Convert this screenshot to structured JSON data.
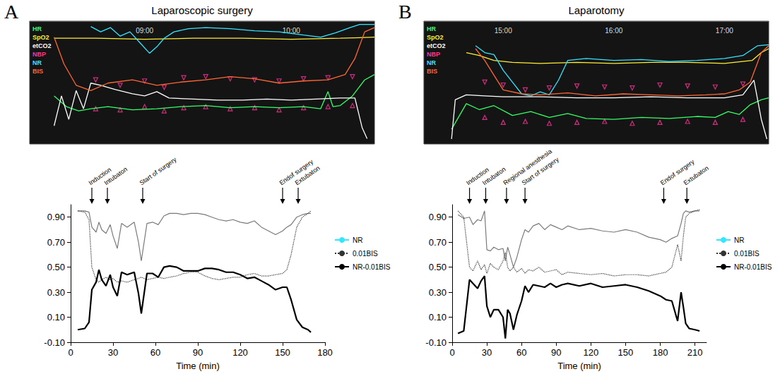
{
  "chart_data": [
    {
      "type": "line",
      "panel": "A",
      "title": "Laparoscopic surgery",
      "xlim": [
        493,
        634
      ],
      "xticks": [
        {
          "value": 540,
          "label": "09:00"
        },
        {
          "value": 600,
          "label": "10:00"
        }
      ],
      "ylim": [
        -5,
        110
      ],
      "tick_labels": "x",
      "grid": false,
      "series": [
        {
          "name": "HR",
          "color": "#33ff66",
          "line_style": "solid",
          "x": [
            503,
            508,
            513,
            518,
            525,
            535,
            545,
            555,
            565,
            575,
            585,
            595,
            605,
            612,
            615,
            617,
            620,
            625,
            630,
            634
          ],
          "values": [
            40,
            30,
            26,
            28,
            30,
            27,
            28,
            30,
            31,
            29,
            30,
            29,
            30,
            28,
            44,
            30,
            31,
            40,
            55,
            60
          ]
        },
        {
          "name": "SpO2",
          "color": "#ffee33",
          "line_style": "solid",
          "x": [
            503,
            520,
            540,
            560,
            580,
            600,
            620,
            634
          ],
          "values": [
            94,
            94,
            93,
            94,
            94,
            93,
            94,
            95
          ]
        },
        {
          "name": "etCO2",
          "color": "#ffffff",
          "line_style": "solid",
          "x": [
            503,
            506,
            509,
            512,
            515,
            518,
            522,
            528,
            535,
            540,
            545,
            550,
            560,
            570,
            580,
            590,
            600,
            610,
            620,
            626,
            629,
            631
          ],
          "values": [
            12,
            40,
            18,
            45,
            28,
            52,
            50,
            46,
            42,
            40,
            44,
            38,
            37,
            36,
            36,
            37,
            36,
            37,
            38,
            38,
            10,
            0
          ]
        },
        {
          "name": "NBP",
          "color": "#ff3399",
          "type": "scatter",
          "marker": "triangle",
          "x": [
            520,
            530,
            540,
            548,
            556,
            565,
            575,
            585,
            595,
            605,
            615,
            625
          ],
          "high": [
            55,
            50,
            54,
            48,
            57,
            58,
            56,
            55,
            54,
            56,
            57,
            58
          ],
          "low": [
            28,
            27,
            30,
            26,
            29,
            30,
            28,
            29,
            27,
            29,
            30,
            31
          ]
        },
        {
          "name": "NR",
          "color": "#33e6ff",
          "line_style": "solid",
          "x": [
            518,
            522,
            526,
            530,
            534,
            538,
            542,
            545,
            548,
            552,
            558,
            565,
            575,
            585,
            595,
            605,
            612,
            618,
            624,
            628,
            634
          ],
          "values": [
            105,
            100,
            104,
            96,
            100,
            90,
            80,
            86,
            94,
            100,
            103,
            104,
            103,
            101,
            100,
            97,
            95,
            99,
            104,
            107,
            107
          ]
        },
        {
          "name": "BIS",
          "color": "#ff6633",
          "line_style": "solid",
          "x": [
            503,
            507,
            512,
            518,
            525,
            535,
            545,
            555,
            565,
            575,
            585,
            595,
            605,
            615,
            622,
            626,
            630,
            634
          ],
          "values": [
            95,
            70,
            50,
            45,
            52,
            55,
            50,
            53,
            55,
            58,
            56,
            52,
            54,
            55,
            60,
            75,
            100,
            104
          ]
        }
      ]
    },
    {
      "type": "line",
      "x_label": "Time (min)",
      "legend": "right",
      "grid": false,
      "xlim": [
        0,
        180
      ],
      "xticks": [
        0,
        30,
        60,
        90,
        120,
        150,
        180
      ],
      "ylim": [
        -0.1,
        1.0
      ],
      "yticks": [
        {
          "value": -0.1,
          "label": "-0.10"
        },
        {
          "value": 0.1,
          "label": "0.10"
        },
        {
          "value": 0.3,
          "label": "0.30"
        },
        {
          "value": 0.5,
          "label": "0.50"
        },
        {
          "value": 0.7,
          "label": "0.70"
        },
        {
          "value": 0.9,
          "label": "0.90"
        }
      ],
      "annotations": [
        {
          "text": "Induction",
          "x": 15
        },
        {
          "text": "Intubaton",
          "x": 26
        },
        {
          "text": "Start of surgery",
          "x": 51
        },
        {
          "text": "Endof surgery",
          "x": 150
        },
        {
          "text": "Extubaton",
          "x": 161
        }
      ],
      "x": [
        5,
        10,
        13,
        15,
        18,
        20,
        22,
        25,
        28,
        30,
        33,
        36,
        40,
        45,
        48,
        50,
        52,
        54,
        58,
        62,
        66,
        70,
        75,
        80,
        85,
        90,
        95,
        100,
        105,
        110,
        115,
        120,
        125,
        130,
        135,
        140,
        145,
        150,
        153,
        156,
        160,
        164,
        168,
        170
      ],
      "series": [
        {
          "name": "NR",
          "color": "#7a7a7a",
          "line_style": "solid",
          "values": [
            0.95,
            0.95,
            0.94,
            0.82,
            0.78,
            0.86,
            0.8,
            0.77,
            0.84,
            0.75,
            0.65,
            0.85,
            0.82,
            0.86,
            0.7,
            0.55,
            0.7,
            0.85,
            0.86,
            0.84,
            0.91,
            0.93,
            0.93,
            0.92,
            0.93,
            0.93,
            0.92,
            0.9,
            0.88,
            0.87,
            0.88,
            0.86,
            0.85,
            0.87,
            0.82,
            0.79,
            0.76,
            0.79,
            0.82,
            0.84,
            0.9,
            0.92,
            0.93,
            0.93
          ]
        },
        {
          "name": "0.01BIS",
          "color": "#333333",
          "line_style": "dotted",
          "values": [
            0.95,
            0.94,
            0.88,
            0.5,
            0.4,
            0.38,
            0.4,
            0.42,
            0.4,
            0.41,
            0.38,
            0.39,
            0.38,
            0.4,
            0.41,
            0.42,
            0.41,
            0.4,
            0.41,
            0.42,
            0.41,
            0.42,
            0.43,
            0.45,
            0.46,
            0.46,
            0.43,
            0.41,
            0.4,
            0.41,
            0.42,
            0.42,
            0.44,
            0.45,
            0.43,
            0.43,
            0.44,
            0.45,
            0.48,
            0.6,
            0.82,
            0.9,
            0.93,
            0.95
          ]
        },
        {
          "name": "NR-0.01BIS",
          "color": "#000000",
          "line_style": "solid",
          "values": [
            0,
            0.01,
            0.06,
            0.32,
            0.38,
            0.48,
            0.4,
            0.35,
            0.44,
            0.34,
            0.27,
            0.46,
            0.44,
            0.46,
            0.29,
            0.13,
            0.29,
            0.45,
            0.45,
            0.42,
            0.5,
            0.51,
            0.5,
            0.47,
            0.47,
            0.47,
            0.49,
            0.49,
            0.48,
            0.46,
            0.46,
            0.44,
            0.41,
            0.42,
            0.39,
            0.36,
            0.32,
            0.34,
            0.34,
            0.24,
            0.08,
            0.02,
            0,
            -0.02
          ]
        }
      ]
    },
    {
      "type": "line",
      "panel": "B",
      "title": "Laparotomy",
      "xlim": [
        857,
        1044
      ],
      "xticks": [
        {
          "value": 900,
          "label": "15:00"
        },
        {
          "value": 960,
          "label": "16:00"
        },
        {
          "value": 1020,
          "label": "17:00"
        }
      ],
      "ylim": [
        -5,
        120
      ],
      "tick_labels": "x",
      "grid": false,
      "series": [
        {
          "name": "HR",
          "color": "#33ff66",
          "line_style": "solid",
          "x": [
            872,
            880,
            887,
            895,
            905,
            915,
            925,
            935,
            945,
            960,
            975,
            990,
            1005,
            1015,
            1022,
            1028,
            1034,
            1040,
            1044
          ],
          "values": [
            10,
            36,
            30,
            34,
            24,
            28,
            22,
            26,
            21,
            20,
            22,
            21,
            23,
            22,
            28,
            25,
            35,
            40,
            42
          ]
        },
        {
          "name": "SpO2",
          "color": "#ffee33",
          "line_style": "solid",
          "x": [
            880,
            887,
            895,
            905,
            920,
            940,
            960,
            980,
            1000,
            1020,
            1035,
            1040,
            1044
          ],
          "values": [
            88,
            85,
            80,
            78,
            77,
            78,
            77,
            78,
            78,
            77,
            80,
            88,
            92
          ]
        },
        {
          "name": "etCO2",
          "color": "#ffffff",
          "line_style": "solid",
          "x": [
            872,
            874,
            880,
            890,
            900,
            920,
            940,
            960,
            980,
            1000,
            1020,
            1030,
            1036,
            1040,
            1043
          ],
          "values": [
            0,
            40,
            45,
            44,
            43,
            43,
            42,
            42,
            43,
            42,
            42,
            45,
            60,
            20,
            0
          ]
        },
        {
          "name": "NBP",
          "color": "#ff3399",
          "type": "scatter",
          "marker": "triangle",
          "x": [
            890,
            900,
            912,
            925,
            940,
            955,
            970,
            985,
            1000,
            1015,
            1030
          ],
          "high": [
            58,
            55,
            50,
            52,
            54,
            53,
            52,
            55,
            54,
            53,
            56
          ],
          "low": [
            22,
            17,
            18,
            16,
            17,
            18,
            16,
            17,
            18,
            17,
            20
          ]
        },
        {
          "name": "NR",
          "color": "#33e6ff",
          "line_style": "solid",
          "x": [
            885,
            890,
            895,
            900,
            905,
            910,
            915,
            920,
            925,
            930,
            935,
            945,
            960,
            975,
            990,
            1005,
            1020,
            1030,
            1038,
            1044
          ],
          "values": [
            95,
            88,
            86,
            70,
            58,
            46,
            44,
            48,
            45,
            60,
            80,
            82,
            80,
            81,
            79,
            80,
            82,
            85,
            95,
            96
          ]
        },
        {
          "name": "BIS",
          "color": "#ff6633",
          "line_style": "solid",
          "x": [
            885,
            890,
            895,
            900,
            910,
            920,
            935,
            950,
            965,
            980,
            995,
            1010,
            1020,
            1028,
            1034,
            1040,
            1044
          ],
          "values": [
            92,
            80,
            65,
            50,
            46,
            45,
            47,
            44,
            46,
            45,
            44,
            45,
            46,
            50,
            58,
            88,
            95
          ]
        }
      ]
    },
    {
      "type": "line",
      "x_label": "Time (min)",
      "legend": "right",
      "grid": false,
      "xlim": [
        0,
        220
      ],
      "xticks": [
        0,
        30,
        60,
        90,
        120,
        150,
        180,
        210
      ],
      "ylim": [
        -0.1,
        1.0
      ],
      "yticks": [
        {
          "value": -0.1,
          "label": "-0.10"
        },
        {
          "value": 0.1,
          "label": "0.10"
        },
        {
          "value": 0.3,
          "label": "0.30"
        },
        {
          "value": 0.5,
          "label": "0.50"
        },
        {
          "value": 0.7,
          "label": "0.70"
        },
        {
          "value": 0.9,
          "label": "0.90"
        }
      ],
      "annotations": [
        {
          "text": "Induction",
          "x": 15
        },
        {
          "text": "Intubaton",
          "x": 29
        },
        {
          "text": "Regional anesthesia",
          "x": 47
        },
        {
          "text": "Start of surgery",
          "x": 63
        },
        {
          "text": "Endof surgery",
          "x": 183
        },
        {
          "text": "Extubaton",
          "x": 203
        }
      ],
      "x": [
        5,
        10,
        15,
        18,
        22,
        25,
        28,
        30,
        33,
        36,
        40,
        44,
        46,
        48,
        50,
        53,
        56,
        60,
        63,
        66,
        70,
        75,
        80,
        85,
        90,
        95,
        100,
        110,
        120,
        130,
        140,
        150,
        160,
        170,
        180,
        185,
        190,
        195,
        198,
        200,
        202,
        205,
        210,
        214
      ],
      "series": [
        {
          "name": "NR",
          "color": "#7a7a7a",
          "line_style": "solid",
          "values": [
            0.92,
            0.89,
            0.9,
            0.84,
            0.88,
            0.87,
            0.95,
            0.64,
            0.63,
            0.66,
            0.64,
            0.65,
            0.55,
            0.66,
            0.6,
            0.5,
            0.58,
            0.72,
            0.8,
            0.78,
            0.83,
            0.85,
            0.8,
            0.84,
            0.82,
            0.8,
            0.83,
            0.8,
            0.81,
            0.79,
            0.78,
            0.8,
            0.78,
            0.74,
            0.72,
            0.7,
            0.73,
            0.75,
            0.85,
            0.93,
            0.95,
            0.94,
            0.95,
            0.95
          ]
        },
        {
          "name": "0.01BIS",
          "color": "#333333",
          "line_style": "dotted",
          "values": [
            0.95,
            0.9,
            0.5,
            0.47,
            0.55,
            0.48,
            0.52,
            0.45,
            0.53,
            0.5,
            0.48,
            0.55,
            0.62,
            0.5,
            0.47,
            0.5,
            0.46,
            0.49,
            0.45,
            0.48,
            0.47,
            0.5,
            0.46,
            0.47,
            0.48,
            0.44,
            0.46,
            0.45,
            0.44,
            0.45,
            0.43,
            0.44,
            0.44,
            0.43,
            0.45,
            0.46,
            0.5,
            0.68,
            0.55,
            0.75,
            0.9,
            0.93,
            0.95,
            0.96
          ]
        },
        {
          "name": "NR-0.01BIS",
          "color": "#000000",
          "line_style": "solid",
          "values": [
            -0.03,
            -0.01,
            0.4,
            0.37,
            0.33,
            0.39,
            0.43,
            0.19,
            0.1,
            0.16,
            0.16,
            0.1,
            -0.07,
            0.16,
            0.13,
            0,
            0.12,
            0.23,
            0.35,
            0.3,
            0.36,
            0.35,
            0.34,
            0.37,
            0.34,
            0.36,
            0.37,
            0.35,
            0.37,
            0.34,
            0.35,
            0.36,
            0.34,
            0.31,
            0.27,
            0.24,
            0.23,
            0.07,
            0.3,
            0.18,
            0.05,
            0.01,
            0,
            -0.01
          ]
        }
      ]
    }
  ]
}
